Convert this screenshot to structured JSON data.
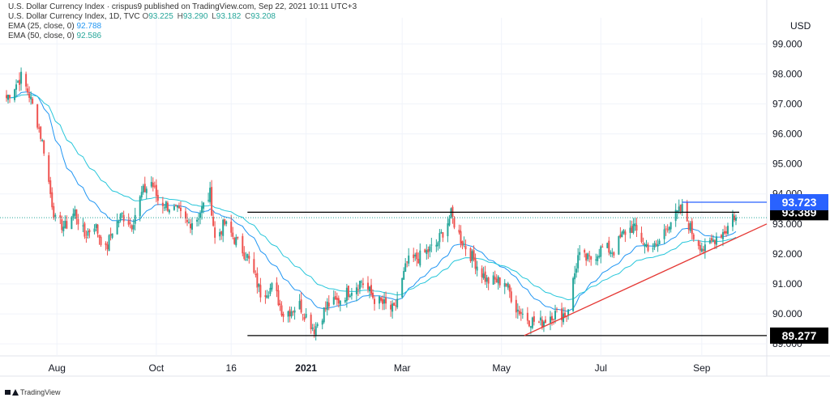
{
  "header": {
    "publish_line": "U.S. Dollar Currency Index · crispus9 published on TradingView.com, Sep 22, 2021 10:11 UTC+3",
    "symbol_line": "U.S. Dollar Currency Index, 1D, TVC",
    "open_label": "O",
    "open": "93.225",
    "high_label": "H",
    "high": "93.290",
    "low_label": "L",
    "low": "93.182",
    "close_label": "C",
    "close": "93.208",
    "ema25_label": "EMA (25, close, 0)",
    "ema25_value": "92.788",
    "ema50_label": "EMA (50, close, 0)",
    "ema50_value": "92.586"
  },
  "footer": {
    "brand": "TradingView"
  },
  "colors": {
    "up": "#26a69a",
    "down": "#ef5350",
    "ema25": "#2196f3",
    "ema50": "#26c6da",
    "support": "#000000",
    "trendline": "#e53935",
    "highlight": "#2962ff",
    "grid": "#f0f3fa"
  },
  "chart_data": {
    "type": "candlestick",
    "currency": "USD",
    "x_start": "2020-07-01",
    "x_end": "2021-09-22",
    "ylim": [
      88.6,
      99.6
    ],
    "y_ticks": [
      "99.000",
      "98.000",
      "97.000",
      "96.000",
      "95.000",
      "94.000",
      "93.000",
      "92.000",
      "91.000",
      "90.000",
      "89.000"
    ],
    "x_ticks": [
      {
        "label": "Aug",
        "date": "2020-08-01",
        "bold": false
      },
      {
        "label": "Oct",
        "date": "2020-10-01",
        "bold": false
      },
      {
        "label": "16",
        "date": "2020-11-16",
        "bold": false
      },
      {
        "label": "2021",
        "date": "2021-01-01",
        "bold": true
      },
      {
        "label": "Mar",
        "date": "2021-03-01",
        "bold": false
      },
      {
        "label": "May",
        "date": "2021-05-01",
        "bold": false
      },
      {
        "label": "Jul",
        "date": "2021-07-01",
        "bold": false
      },
      {
        "label": "Sep",
        "date": "2021-09-01",
        "bold": false
      }
    ],
    "close_path": [
      {
        "date": "2020-07-01",
        "value": 97.2
      },
      {
        "date": "2020-07-06",
        "value": 97.6
      },
      {
        "date": "2020-07-10",
        "value": 97.9
      },
      {
        "date": "2020-07-15",
        "value": 97.3
      },
      {
        "date": "2020-07-20",
        "value": 96.4
      },
      {
        "date": "2020-07-24",
        "value": 95.5
      },
      {
        "date": "2020-07-28",
        "value": 94.0
      },
      {
        "date": "2020-07-31",
        "value": 93.1
      },
      {
        "date": "2020-08-06",
        "value": 92.9
      },
      {
        "date": "2020-08-12",
        "value": 93.4
      },
      {
        "date": "2020-08-18",
        "value": 92.6
      },
      {
        "date": "2020-08-24",
        "value": 93.0
      },
      {
        "date": "2020-08-31",
        "value": 92.1
      },
      {
        "date": "2020-09-04",
        "value": 92.8
      },
      {
        "date": "2020-09-10",
        "value": 93.3
      },
      {
        "date": "2020-09-16",
        "value": 93.0
      },
      {
        "date": "2020-09-22",
        "value": 94.0
      },
      {
        "date": "2020-09-28",
        "value": 94.4
      },
      {
        "date": "2020-10-02",
        "value": 93.8
      },
      {
        "date": "2020-10-08",
        "value": 93.6
      },
      {
        "date": "2020-10-14",
        "value": 93.4
      },
      {
        "date": "2020-10-20",
        "value": 93.0
      },
      {
        "date": "2020-10-26",
        "value": 93.2
      },
      {
        "date": "2020-11-03",
        "value": 94.0
      },
      {
        "date": "2020-11-06",
        "value": 92.5
      },
      {
        "date": "2020-11-12",
        "value": 93.0
      },
      {
        "date": "2020-11-18",
        "value": 92.5
      },
      {
        "date": "2020-11-26",
        "value": 91.9
      },
      {
        "date": "2020-12-04",
        "value": 90.7
      },
      {
        "date": "2020-12-12",
        "value": 90.9
      },
      {
        "date": "2020-12-18",
        "value": 90.0
      },
      {
        "date": "2020-12-28",
        "value": 90.3
      },
      {
        "date": "2021-01-06",
        "value": 89.5
      },
      {
        "date": "2021-01-14",
        "value": 90.3
      },
      {
        "date": "2021-01-20",
        "value": 90.4
      },
      {
        "date": "2021-01-28",
        "value": 90.8
      },
      {
        "date": "2021-02-04",
        "value": 91.1
      },
      {
        "date": "2021-02-12",
        "value": 90.5
      },
      {
        "date": "2021-02-24",
        "value": 90.1
      },
      {
        "date": "2021-03-04",
        "value": 91.7
      },
      {
        "date": "2021-03-12",
        "value": 91.9
      },
      {
        "date": "2021-03-22",
        "value": 92.3
      },
      {
        "date": "2021-03-31",
        "value": 93.3
      },
      {
        "date": "2021-04-06",
        "value": 92.5
      },
      {
        "date": "2021-04-14",
        "value": 91.8
      },
      {
        "date": "2021-04-22",
        "value": 91.1
      },
      {
        "date": "2021-05-03",
        "value": 91.1
      },
      {
        "date": "2021-05-10",
        "value": 90.2
      },
      {
        "date": "2021-05-18",
        "value": 89.8
      },
      {
        "date": "2021-05-25",
        "value": 89.7
      },
      {
        "date": "2021-06-01",
        "value": 90.0
      },
      {
        "date": "2021-06-10",
        "value": 90.0
      },
      {
        "date": "2021-06-17",
        "value": 91.9
      },
      {
        "date": "2021-06-24",
        "value": 91.8
      },
      {
        "date": "2021-07-02",
        "value": 92.2
      },
      {
        "date": "2021-07-09",
        "value": 92.1
      },
      {
        "date": "2021-07-15",
        "value": 92.7
      },
      {
        "date": "2021-07-21",
        "value": 92.9
      },
      {
        "date": "2021-07-28",
        "value": 92.3
      },
      {
        "date": "2021-08-04",
        "value": 92.2
      },
      {
        "date": "2021-08-11",
        "value": 93.0
      },
      {
        "date": "2021-08-20",
        "value": 93.5
      },
      {
        "date": "2021-08-27",
        "value": 92.6
      },
      {
        "date": "2021-09-03",
        "value": 92.1
      },
      {
        "date": "2021-09-10",
        "value": 92.6
      },
      {
        "date": "2021-09-16",
        "value": 92.8
      },
      {
        "date": "2021-09-20",
        "value": 93.3
      },
      {
        "date": "2021-09-22",
        "value": 93.21
      }
    ],
    "levels": [
      {
        "value": 93.389,
        "label": "93.389",
        "from": "2020-11-26",
        "to": "2021-09-24",
        "color": "#000000"
      },
      {
        "value": 89.277,
        "label": "89.277",
        "from": "2020-11-26",
        "to": "2021-10-31",
        "color": "#000000"
      },
      {
        "value": 93.723,
        "label": "93.723",
        "from": "2021-08-20",
        "to": "2021-10-31",
        "color": "#2962ff"
      }
    ],
    "trendline": {
      "from": {
        "date": "2021-05-15",
        "value": 89.277
      },
      "to": {
        "date": "2021-10-31",
        "value": 93.0
      }
    },
    "last_price": 93.208
  }
}
